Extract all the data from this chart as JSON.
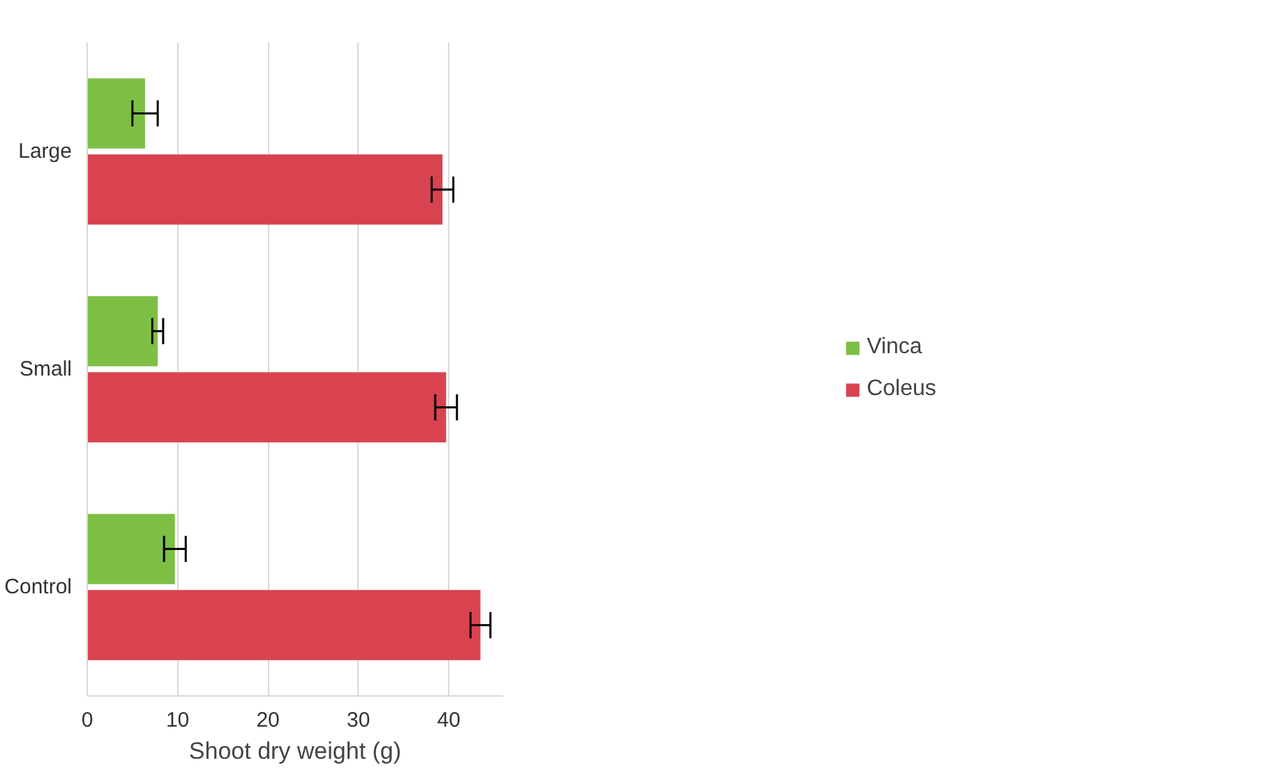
{
  "chart_data": {
    "type": "bar",
    "orientation": "horizontal",
    "categories": [
      "Large",
      "Small",
      "Control"
    ],
    "series": [
      {
        "name": "Vinca",
        "color": "#7dbf45",
        "values": [
          6.4,
          7.8,
          9.7
        ],
        "errors": [
          1.4,
          0.6,
          1.2
        ]
      },
      {
        "name": "Coleus",
        "color": "#d8434f",
        "values": [
          39.3,
          39.7,
          43.5
        ],
        "errors": [
          1.2,
          1.2,
          1.1
        ]
      }
    ],
    "xlabel": "Shoot dry weight (g)",
    "xlim": [
      0,
      46
    ],
    "xticks": [
      0,
      10,
      20,
      30,
      40
    ],
    "grid": "x",
    "legend": "right"
  }
}
